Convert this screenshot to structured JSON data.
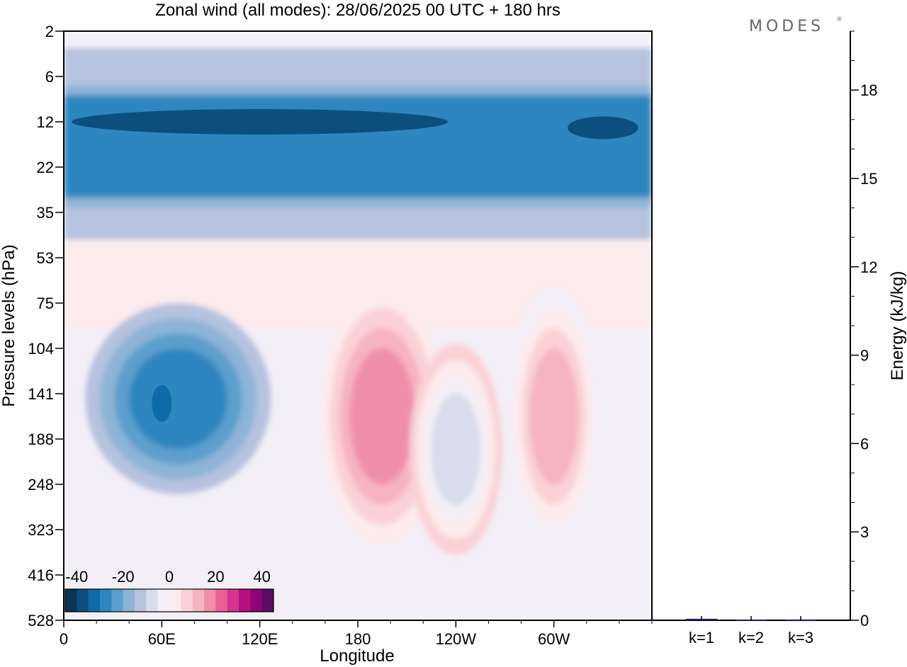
{
  "title": "Zonal wind (all modes):  28/06/2025  00 UTC  + 180 hrs",
  "logo": {
    "text": "MODES",
    "mark": "®"
  },
  "chart_data": [
    {
      "type": "heatmap",
      "title": "Zonal wind (all modes):  28/06/2025  00 UTC  + 180 hrs",
      "xlabel": "Longitude",
      "ylabel": "Pressure levels (hPa)",
      "x_ticks": [
        "0",
        "60E",
        "120E",
        "180",
        "120W",
        "60W"
      ],
      "x_tick_lon": [
        0,
        60,
        120,
        180,
        240,
        300
      ],
      "xlim": [
        0,
        360
      ],
      "y_ticks": [
        "2",
        "6",
        "12",
        "22",
        "35",
        "53",
        "75",
        "104",
        "141",
        "188",
        "248",
        "323",
        "416",
        "528"
      ],
      "y_axis": "pressure levels, top to bottom",
      "colorbar": {
        "tick_labels": [
          "-40",
          "-20",
          "0",
          "20",
          "40"
        ],
        "range": [
          -45,
          45
        ],
        "step": 5,
        "colors": [
          "#0a3554",
          "#0c4f7f",
          "#0f6aa8",
          "#2f86bf",
          "#5b9fcd",
          "#8db4d6",
          "#b5c3df",
          "#d8dcec",
          "#f3eff7",
          "#fdebed",
          "#fad1d6",
          "#f6b3c0",
          "#f08ea8",
          "#e76098",
          "#d6338d",
          "#b70f7f",
          "#8f0479",
          "#5e0b63"
        ]
      },
      "field_features": [
        {
          "feature": "stratospheric easterly band",
          "lon_range": [
            0,
            360
          ],
          "p_range": [
            8,
            30
          ],
          "value": -30
        },
        {
          "feature": "easterly core",
          "lon_range": [
            40,
            100
          ],
          "p_range": [
            104,
            200
          ],
          "value": -30
        },
        {
          "feature": "westerly core",
          "lon_range": [
            175,
            215
          ],
          "p_range": [
            104,
            248
          ],
          "value": 15
        },
        {
          "feature": "westerly core",
          "lon_range": [
            285,
            315
          ],
          "p_range": [
            104,
            248
          ],
          "value": 12
        },
        {
          "feature": "easterly minimum",
          "lon_range": [
            225,
            255
          ],
          "p_range": [
            141,
            280
          ],
          "value": -10
        }
      ]
    },
    {
      "type": "bar",
      "categories": [
        "k=1",
        "k=2",
        "k=3"
      ],
      "values": [
        0.05,
        0.02,
        0.01
      ],
      "ylabel": "Energy (kJ/kg)",
      "ylim": [
        0,
        20
      ],
      "y_ticks": [
        0,
        3,
        6,
        9,
        12,
        15,
        18
      ],
      "bar_color": "#1a1a8c"
    }
  ]
}
